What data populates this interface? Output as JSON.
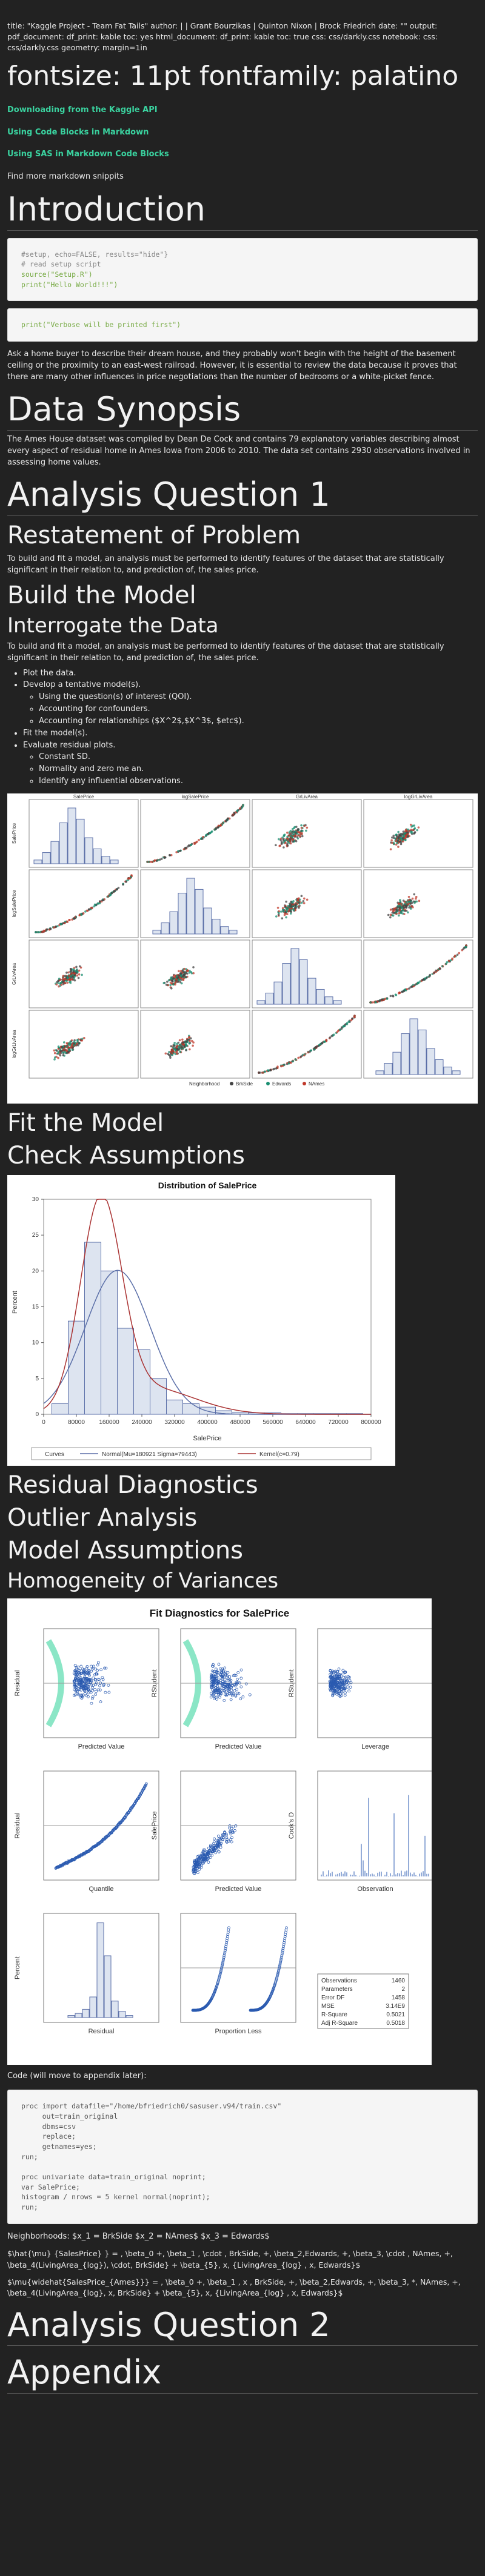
{
  "meta": "title: \"Kaggle Project - Team Fat Tails\" author: | | Grant Bourzikas | Quinton Nixon | Brock Friedrich date: \"\" output: pdf_document: df_print: kable toc: yes html_document: df_print: kable toc: true css: css/darkly.css notebook: css: css/darkly.css geometry: margin=1in",
  "font_heading": "fontsize: 11pt fontfamily: palatino",
  "links": [
    "Downloading from the Kaggle API",
    "Using Code Blocks in Markdown",
    "Using SAS in Markdown Code Blocks"
  ],
  "find_more": "Find more markdown snippits",
  "introduction": {
    "title": "Introduction",
    "code1": [
      "#setup, echo=FALSE, results=\"hide\"}",
      "# read setup script",
      "source(\"Setup.R\")",
      "print(\"Hello World!!!\")"
    ],
    "code2": "print(\"Verbose will be printed first\")",
    "text": "Ask a home buyer to describe their dream house, and they probably won't begin with the height of the basement ceiling or the proximity to an east-west railroad. However, it is essential to review the data because it proves that there are many other influences in price negotiations than the number of bedrooms or a white-picket fence."
  },
  "synopsis": {
    "title": "Data Synopsis",
    "text": "The Ames House dataset was compiled by Dean De Cock and contains 79 explanatory variables describing almost every aspect of residual home in Ames Iowa from 2006 to 2010. The data set contains 2930 observations involved in assessing home values."
  },
  "aq1": {
    "title": "Analysis Question 1",
    "restatement": "Restatement of Problem",
    "restatement_text": "To build and fit a model, an analysis must be performed to identify features of the dataset that are statistically significant in their relation to, and prediction of, the sales price.",
    "build": "Build the Model",
    "interrogate": "Interrogate the Data",
    "interrogate_text": "To build and fit a model, an analysis must be performed to identify features of the dataset that are statistically significant in their relation to, and prediction of, the sales price.",
    "steps": [
      "Plot the data.",
      "Develop a tentative model(s).",
      "Fit the model(s).",
      "Evaluate residual plots."
    ],
    "substeps_model": [
      "Using the question(s) of interest (QOI).",
      "Accounting for confounders.",
      "Accounting for relationships ($X^2$,$X^3$, $etc$)."
    ],
    "substeps_resid": [
      "Constant SD.",
      "Normality and zero me an.",
      "Identify any influential observations."
    ],
    "fit": "Fit the Model",
    "check": "Check Assumptions",
    "resid_diag": "Residual Diagnostics",
    "outlier": "Outlier Analysis",
    "model_assumptions": "Model Assumptions",
    "homog": "Homogeneity of Variances"
  },
  "scatter_matrix": {
    "vars": [
      "SalePrice",
      "logSalePrice",
      "GrLivArea",
      "logGrLivArea"
    ],
    "legend": [
      "Neighborhood",
      "BrkSide",
      "Edwards",
      "NAmes"
    ],
    "colors": [
      "#444444",
      "#1a8f72",
      "#c0392b"
    ]
  },
  "chart_data": {
    "type": "bar",
    "title": "Distribution of SalePrice",
    "xlabel": "SalePrice",
    "ylabel": "Percent",
    "categories": [
      "40000",
      "80000",
      "120000",
      "160000",
      "200000",
      "240000",
      "280000",
      "320000",
      "360000",
      "400000",
      "440000",
      "480000",
      "520000",
      "560000",
      "600000",
      "640000",
      "680000",
      "720000",
      "760000"
    ],
    "values": [
      1.5,
      13,
      24,
      20,
      12,
      9,
      5,
      2,
      1.5,
      1,
      0.5,
      0.3,
      0.2,
      0.2,
      0.1,
      0.1,
      0.1,
      0.1,
      0.1
    ],
    "ylim": [
      0,
      30
    ],
    "xticks": [
      "0",
      "80000",
      "160000",
      "240000",
      "320000",
      "400000",
      "480000",
      "560000",
      "640000",
      "720000",
      "800000"
    ],
    "yticks": [
      "0",
      "5",
      "10",
      "15",
      "20",
      "25",
      "30"
    ],
    "legend_label": "Curves",
    "curves": [
      "Normal(Mu=180921 Sigma=79443)",
      "Kernel(c=0.79)"
    ]
  },
  "diag_title": "Fit Diagnostics for SalePrice",
  "diag_stats": [
    [
      "Observations",
      "1460"
    ],
    [
      "Parameters",
      "2"
    ],
    [
      "Error DF",
      "1458"
    ],
    [
      "MSE",
      "3.14E9"
    ],
    [
      "R-Square",
      "0.5021"
    ],
    [
      "Adj R-Square",
      "0.5018"
    ]
  ],
  "code_label": "Code (will move to appendix later):",
  "sas_code": [
    "proc import datafile=\"/home/bfriedrich0/sasuser.v94/train.csv\"",
    "     out=train_original",
    "     dbms=csv",
    "     replace;",
    "     getnames=yes;",
    "run;",
    "",
    "proc univariate data=train_original noprint;",
    "var SalePrice;",
    "histogram / nrows = 5 kernel normal(noprint);",
    "run;"
  ],
  "neighborhoods": "Neighborhoods: $x_1 = BrkSide $x_2 = NAmes$ $x_3 = Edwards$",
  "eq1": "$\\hat{\\mu} {SalesPrice} } = , \\beta_0 +, \\beta_1 , \\cdot , BrkSide, +, \\beta_2,Edwards, +, \\beta_3, \\cdot , NAmes, +, \\beta_4(LivingArea_{log}), \\cdot, BrkSide} + \\beta_{5}, x, {LivingArea_{log} , x, Edwards}$",
  "eq2": "$\\mu{widehat{SalesPrice_{Ames}}} = , \\beta_0 +, \\beta_1 , x , BrkSide, +, \\beta_2,Edwards, +, \\beta_3, *, NAmes, +, \\beta_4(LivingArea_{log}, x, BrkSide} + \\beta_{5}, x, {LivingArea_{log} , x, Edwards}$",
  "aq2": "Analysis Question 2",
  "appendix": "Appendix"
}
